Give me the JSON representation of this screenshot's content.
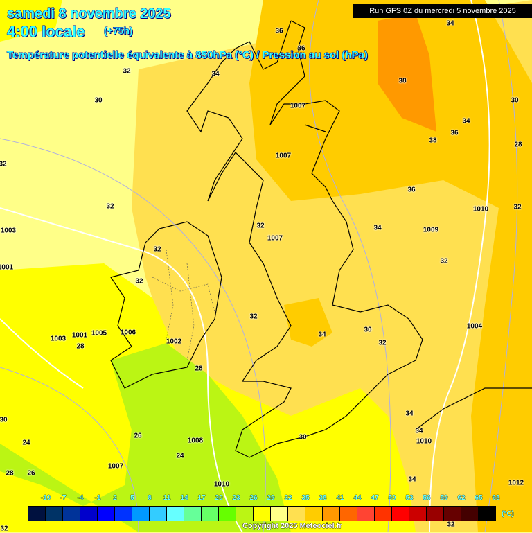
{
  "header": {
    "date": "samedi 8 novembre 2025",
    "time": "4:00 locale",
    "lead": "(+75h)",
    "parameter": "Température potentielle équivalente à 850hPa (°C) / Pression au sol (hPa)",
    "run": "Run GFS 0Z du mercredi 5 novembre 2025"
  },
  "colors": {
    "pale_yellow": "#ffff88",
    "light_orange": "#ffe050",
    "orange": "#ffcc00",
    "dark_orange": "#ff9900",
    "yellow": "#ffff00",
    "green": "#bbf514",
    "title_text": "#33ffff"
  },
  "labels": [
    "36",
    "36",
    "34",
    "32",
    "30",
    "1007",
    "38",
    "36",
    "38",
    "34",
    "30",
    "28",
    "1007",
    "32",
    "32",
    "1010",
    "32",
    "36",
    "1009",
    "1003",
    "34",
    "32",
    "1007",
    "32",
    "32",
    "1001",
    "32",
    "30",
    "34",
    "32",
    "32",
    "1004",
    "1005",
    "1006",
    "1002",
    "1003",
    "1001",
    "28",
    "28",
    "34",
    "34",
    "30",
    "1010",
    "34",
    "26",
    "1008",
    "24",
    "24",
    "26",
    "28",
    "1007",
    "34",
    "1012",
    "32",
    "1010",
    "30",
    "32"
  ],
  "legend": {
    "ticks": [
      "-10",
      "-7",
      "-4",
      "-1",
      "2",
      "5",
      "8",
      "11",
      "14",
      "17",
      "20",
      "23",
      "26",
      "29",
      "32",
      "35",
      "38",
      "41",
      "44",
      "47",
      "50",
      "53",
      "56",
      "59",
      "62",
      "65",
      "68"
    ],
    "colors": [
      "#00113f",
      "#003366",
      "#003399",
      "#0000cc",
      "#0000ff",
      "#0033ff",
      "#0099ff",
      "#33ccff",
      "#66ffff",
      "#66ff99",
      "#66ff66",
      "#66ff00",
      "#bbf514",
      "#ffff00",
      "#ffff88",
      "#ffe050",
      "#ffcc00",
      "#ff9900",
      "#ff6600",
      "#ff4433",
      "#ff3300",
      "#ff0000",
      "#cc0000",
      "#990000",
      "#660000",
      "#440000",
      "#000000"
    ],
    "unit": "(°C)"
  },
  "copyright": "Copyright 2025 Meteociel.fr"
}
